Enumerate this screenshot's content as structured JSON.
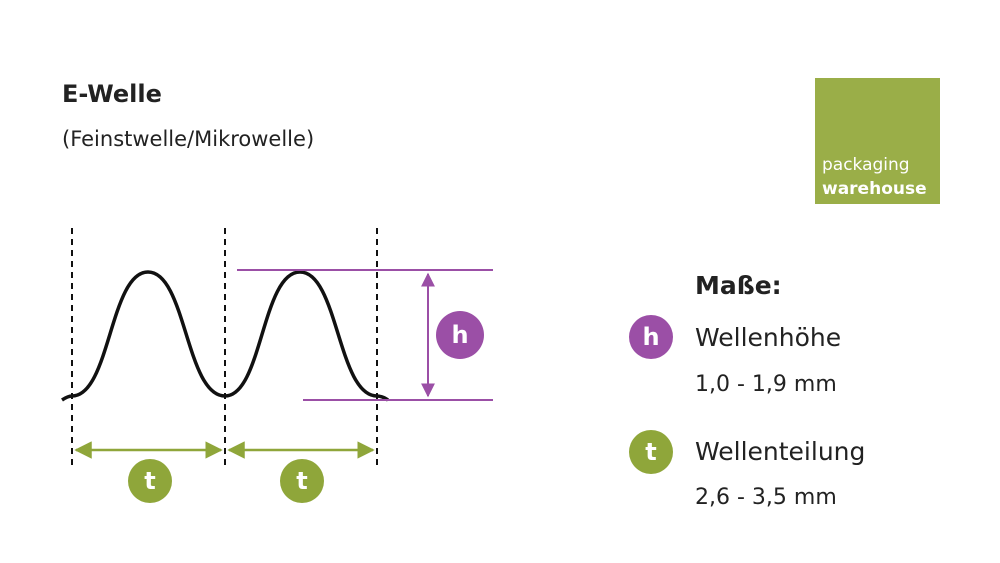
{
  "header": {
    "title": "E-Welle",
    "subtitle": "(Feinstwelle/Mikrowelle)"
  },
  "logo": {
    "line1": "packaging",
    "line2": "warehouse"
  },
  "diagram": {
    "height_label": "h",
    "pitch_labels": [
      "t",
      "t"
    ]
  },
  "legend": {
    "heading": "Maße:",
    "items": [
      {
        "symbol": "h",
        "name": "Wellenhöhe",
        "range": "1,0 - 1,9 mm"
      },
      {
        "symbol": "t",
        "name": "Wellenteilung",
        "range": "2,6 - 3,5 mm"
      }
    ]
  }
}
